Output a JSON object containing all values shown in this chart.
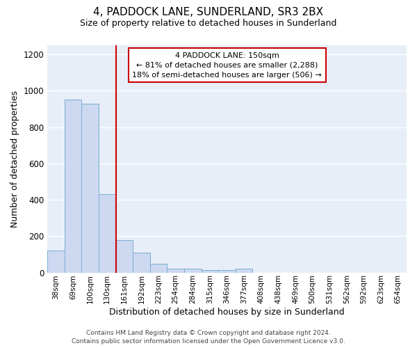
{
  "title": "4, PADDOCK LANE, SUNDERLAND, SR3 2BX",
  "subtitle": "Size of property relative to detached houses in Sunderland",
  "xlabel": "Distribution of detached houses by size in Sunderland",
  "ylabel": "Number of detached properties",
  "categories": [
    "38sqm",
    "69sqm",
    "100sqm",
    "130sqm",
    "161sqm",
    "192sqm",
    "223sqm",
    "254sqm",
    "284sqm",
    "315sqm",
    "346sqm",
    "377sqm",
    "408sqm",
    "438sqm",
    "469sqm",
    "500sqm",
    "531sqm",
    "562sqm",
    "592sqm",
    "623sqm",
    "654sqm"
  ],
  "values": [
    120,
    950,
    930,
    430,
    180,
    110,
    47,
    20,
    20,
    15,
    15,
    20,
    0,
    0,
    0,
    0,
    0,
    0,
    0,
    0,
    0
  ],
  "bar_color": "#ccd9f0",
  "bar_edge_color": "#7aadd4",
  "vline_index": 4,
  "vline_color": "#cc0000",
  "annotation_line1": "4 PADDOCK LANE: 150sqm",
  "annotation_line2": "← 81% of detached houses are smaller (2,288)",
  "annotation_line3": "18% of semi-detached houses are larger (506) →",
  "annotation_box_color": "#cc0000",
  "ylim": [
    0,
    1250
  ],
  "yticks": [
    0,
    200,
    400,
    600,
    800,
    1000,
    1200
  ],
  "background_color": "#e8eef8",
  "grid_color": "#ffffff",
  "footer_line1": "Contains HM Land Registry data © Crown copyright and database right 2024.",
  "footer_line2": "Contains public sector information licensed under the Open Government Licence v3.0."
}
